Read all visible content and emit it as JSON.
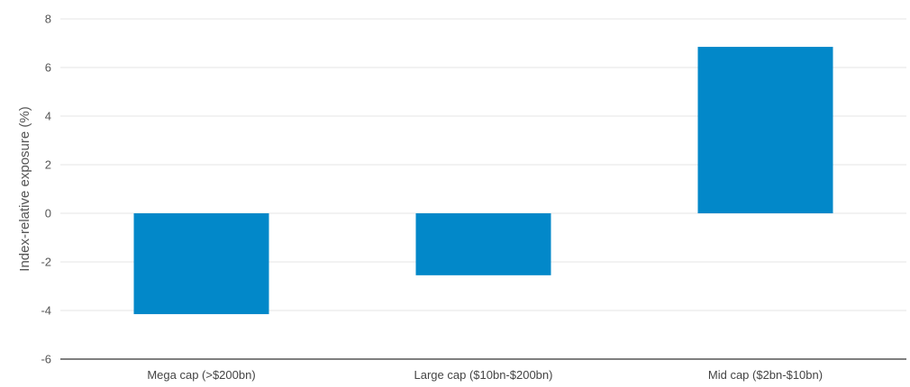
{
  "chart_data": {
    "type": "bar",
    "title": "",
    "xlabel": "",
    "ylabel": "Index-relative exposure (%)",
    "categories": [
      "Mega cap (>$200bn)",
      "Large cap ($10bn-$200bn)",
      "Mid cap ($2bn-$10bn)"
    ],
    "values": [
      -4.15,
      -2.55,
      6.85
    ],
    "ylim": [
      -6,
      8
    ],
    "yticks": [
      8,
      6,
      4,
      2,
      0,
      -2,
      -4,
      -6
    ],
    "ytick_labels": [
      "8",
      "6",
      "4",
      "2",
      "0",
      "-2",
      "-4",
      "-6"
    ],
    "grid": true,
    "legend": "none",
    "colors": {
      "bar": "#0288C9",
      "grid": "#e6e6e6",
      "axis": "#333333"
    }
  }
}
